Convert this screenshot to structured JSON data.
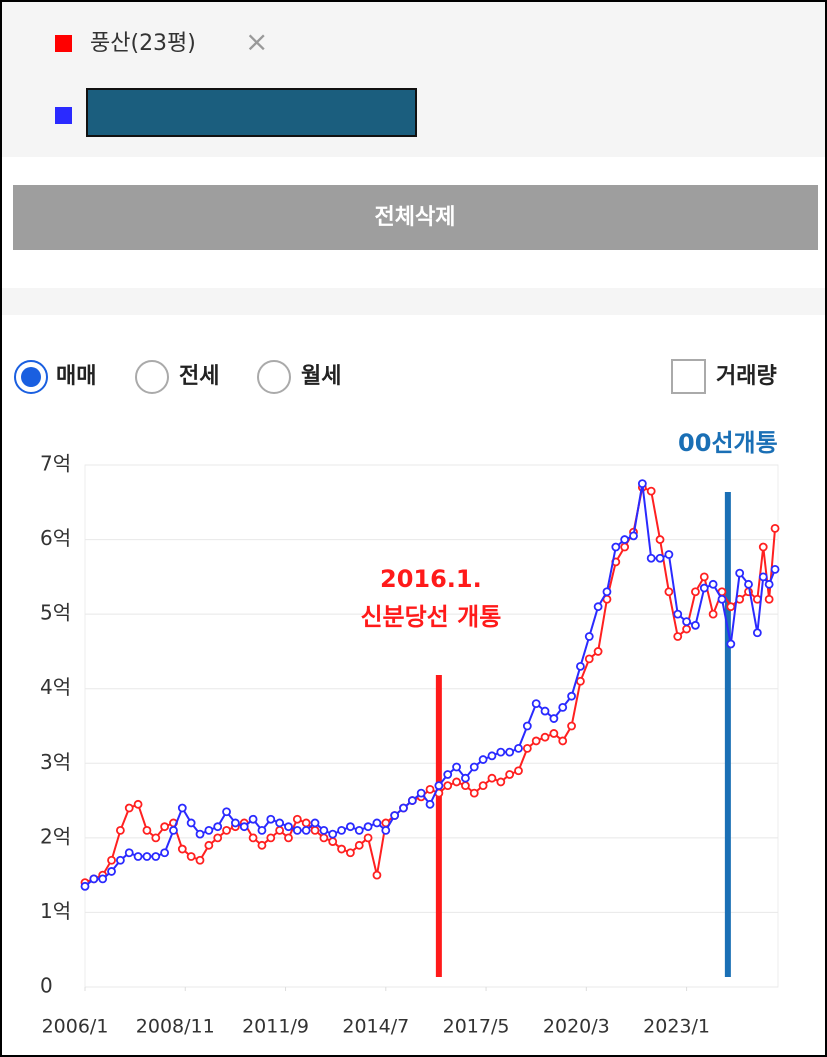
{
  "ui": {
    "legend_close": "×",
    "delete_all": "전체삭제",
    "radios": [
      "매매",
      "전세",
      "월세"
    ],
    "checkbox": "거래량"
  },
  "chart_data": {
    "type": "line",
    "x": [
      "2006/1",
      "2006/4",
      "2006/7",
      "2006/10",
      "2007/1",
      "2007/4",
      "2007/7",
      "2007/10",
      "2008/1",
      "2008/4",
      "2008/7",
      "2008/10",
      "2009/1",
      "2009/4",
      "2009/7",
      "2009/10",
      "2010/1",
      "2010/4",
      "2010/7",
      "2010/10",
      "2011/1",
      "2011/4",
      "2011/7",
      "2011/10",
      "2012/1",
      "2012/4",
      "2012/7",
      "2012/10",
      "2013/1",
      "2013/4",
      "2013/7",
      "2013/10",
      "2014/1",
      "2014/4",
      "2014/7",
      "2014/10",
      "2015/1",
      "2015/4",
      "2015/7",
      "2015/10",
      "2016/1",
      "2016/4",
      "2016/7",
      "2016/10",
      "2017/1",
      "2017/4",
      "2017/7",
      "2017/10",
      "2018/1",
      "2018/4",
      "2018/7",
      "2018/10",
      "2019/1",
      "2019/4",
      "2019/7",
      "2019/10",
      "2020/1",
      "2020/4",
      "2020/7",
      "2020/10",
      "2021/1",
      "2021/4",
      "2021/7",
      "2021/10",
      "2022/1",
      "2022/4",
      "2022/7",
      "2022/10",
      "2023/1",
      "2023/4",
      "2023/7",
      "2023/10",
      "2024/1",
      "2024/4",
      "2024/7",
      "2024/10",
      "2025/1",
      "2025/3",
      "2025/5",
      "2025/7"
    ],
    "series": [
      {
        "name": "풍산(23평)",
        "color": "#ff2020",
        "values": [
          1.4,
          1.45,
          1.5,
          1.7,
          2.1,
          2.4,
          2.45,
          2.1,
          2.0,
          2.15,
          2.2,
          1.85,
          1.75,
          1.7,
          1.9,
          2.0,
          2.1,
          2.15,
          2.2,
          2.0,
          1.9,
          2.0,
          2.1,
          2.0,
          2.25,
          2.2,
          2.1,
          2.0,
          1.95,
          1.85,
          1.8,
          1.9,
          2.0,
          1.5,
          2.2,
          2.3,
          2.4,
          2.5,
          2.55,
          2.65,
          2.6,
          2.7,
          2.75,
          2.7,
          2.6,
          2.7,
          2.8,
          2.75,
          2.85,
          2.9,
          3.2,
          3.3,
          3.35,
          3.4,
          3.3,
          3.5,
          4.1,
          4.4,
          4.5,
          5.2,
          5.7,
          5.9,
          6.1,
          6.7,
          6.65,
          6.0,
          5.3,
          4.7,
          4.8,
          5.3,
          5.5,
          5.0,
          5.3,
          5.1,
          5.2,
          5.3,
          5.2,
          5.9,
          5.2,
          6.15
        ]
      },
      {
        "color": "#2a2aff",
        "values": [
          1.35,
          1.45,
          1.45,
          1.55,
          1.7,
          1.8,
          1.75,
          1.75,
          1.75,
          1.8,
          2.1,
          2.4,
          2.2,
          2.05,
          2.1,
          2.15,
          2.35,
          2.2,
          2.15,
          2.25,
          2.1,
          2.25,
          2.2,
          2.15,
          2.1,
          2.1,
          2.2,
          2.1,
          2.05,
          2.1,
          2.15,
          2.1,
          2.15,
          2.2,
          2.1,
          2.3,
          2.4,
          2.5,
          2.6,
          2.45,
          2.7,
          2.85,
          2.95,
          2.8,
          2.95,
          3.05,
          3.1,
          3.15,
          3.15,
          3.2,
          3.5,
          3.8,
          3.7,
          3.6,
          3.75,
          3.9,
          4.3,
          4.7,
          5.1,
          5.3,
          5.9,
          6.0,
          6.05,
          6.75,
          5.75,
          5.75,
          5.8,
          5.0,
          4.9,
          4.85,
          5.35,
          5.4,
          5.2,
          4.6,
          5.55,
          5.4,
          4.75,
          5.5,
          5.4,
          5.6
        ]
      }
    ],
    "xlim": [
      "2006/1",
      "2025/8"
    ],
    "xticks": [
      "2006/1",
      "2008/11",
      "2011/9",
      "2014/7",
      "2017/5",
      "2020/3",
      "2023/1"
    ],
    "ylim": [
      0,
      7
    ],
    "yticks": [
      0,
      {
        "value": 1,
        "label": "1억"
      },
      {
        "value": 2,
        "label": "2억"
      },
      {
        "value": 3,
        "label": "3억"
      },
      {
        "value": 4,
        "label": "4억"
      },
      {
        "value": 5,
        "label": "5억"
      },
      {
        "value": 6,
        "label": "6억"
      },
      {
        "value": 7,
        "label": "7억"
      }
    ],
    "grid": true,
    "annotations": [
      {
        "lines": [
          "2016.1.",
          "신분당선 개통"
        ],
        "x": "2016/1",
        "color": "#ff1a1a"
      },
      {
        "lines": [
          "00선개통"
        ],
        "x": "2024/3",
        "color": "#1a6fb5"
      }
    ]
  }
}
